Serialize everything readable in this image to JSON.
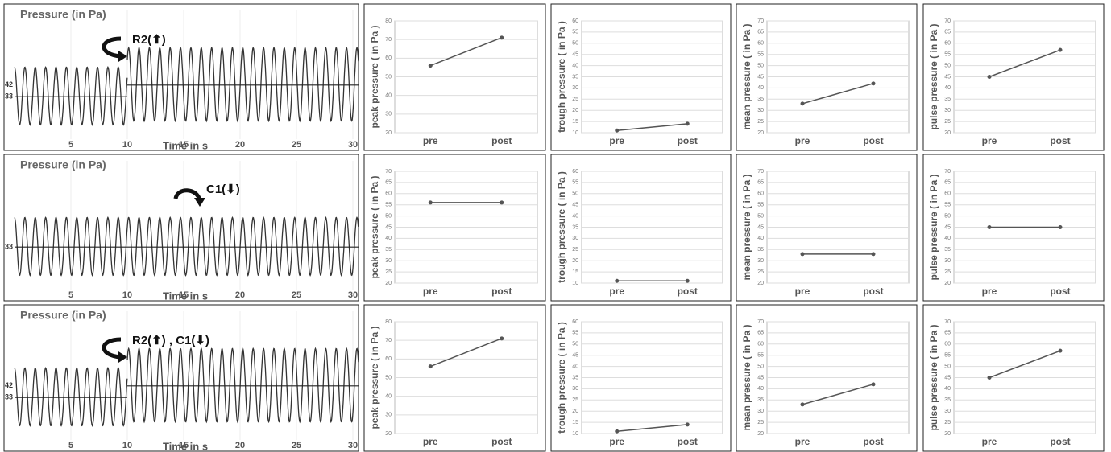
{
  "chart_data": [
    {
      "type": "waveform",
      "title": "Pressure (in Pa)",
      "annotation": "R2(⬆)",
      "xlabel": "Time in s",
      "xlim": [
        0,
        30.5
      ],
      "xticks": [
        5,
        10,
        15,
        20,
        25,
        30
      ],
      "ylim": [
        0,
        100
      ],
      "yticks": [
        42,
        33
      ],
      "period": 0.92,
      "segments": [
        {
          "start": 0,
          "end": 10,
          "peak": 56,
          "trough": 11,
          "mean": 33
        },
        {
          "start": 10,
          "end": 30.5,
          "peak": 71,
          "trough": 14,
          "mean": 42
        }
      ]
    },
    {
      "type": "line",
      "ylabel": "peak pressure ( in Pa )",
      "categories": [
        "pre",
        "post"
      ],
      "values": [
        56,
        71
      ],
      "ylim": [
        20,
        80
      ],
      "yticks": [
        20,
        30,
        40,
        50,
        60,
        70,
        80
      ],
      "color": "#555",
      "grid": true
    },
    {
      "type": "line",
      "ylabel": "trough pressure ( in Pa )",
      "categories": [
        "pre",
        "post"
      ],
      "values": [
        11,
        14
      ],
      "ylim": [
        10,
        60
      ],
      "yticks": [
        10,
        15,
        20,
        25,
        30,
        35,
        40,
        45,
        50,
        55,
        60
      ],
      "color": "#555",
      "grid": true
    },
    {
      "type": "line",
      "ylabel": "mean pressure ( in Pa )",
      "categories": [
        "pre",
        "post"
      ],
      "values": [
        33,
        42
      ],
      "ylim": [
        20,
        70
      ],
      "yticks": [
        20,
        25,
        30,
        35,
        40,
        45,
        50,
        55,
        60,
        65,
        70
      ],
      "color": "#555",
      "grid": true
    },
    {
      "type": "line",
      "ylabel": "pulse pressure ( in Pa )",
      "categories": [
        "pre",
        "post"
      ],
      "values": [
        45,
        57
      ],
      "ylim": [
        20,
        70
      ],
      "yticks": [
        20,
        25,
        30,
        35,
        40,
        45,
        50,
        55,
        60,
        65,
        70
      ],
      "color": "#555",
      "grid": true
    },
    {
      "type": "waveform",
      "title": "Pressure (in Pa)",
      "annotation": "C1(⬇)",
      "xlabel": "Time in s",
      "xlim": [
        0,
        30.5
      ],
      "xticks": [
        5,
        10,
        15,
        20,
        25,
        30
      ],
      "ylim": [
        0,
        100
      ],
      "yticks": [
        33
      ],
      "period": 0.92,
      "segments": [
        {
          "start": 0,
          "end": 30.5,
          "peak": 56,
          "trough": 11,
          "mean": 33
        }
      ]
    },
    {
      "type": "line",
      "ylabel": "peak pressure ( in Pa )",
      "categories": [
        "pre",
        "post"
      ],
      "values": [
        56,
        56
      ],
      "ylim": [
        20,
        70
      ],
      "yticks": [
        20,
        25,
        30,
        35,
        40,
        45,
        50,
        55,
        60,
        65,
        70
      ],
      "color": "#555",
      "grid": true
    },
    {
      "type": "line",
      "ylabel": "trough pressure ( in Pa )",
      "categories": [
        "pre",
        "post"
      ],
      "values": [
        11,
        11
      ],
      "ylim": [
        10,
        60
      ],
      "yticks": [
        10,
        15,
        20,
        25,
        30,
        35,
        40,
        45,
        50,
        55,
        60
      ],
      "color": "#555",
      "grid": true
    },
    {
      "type": "line",
      "ylabel": "mean pressure ( in Pa )",
      "categories": [
        "pre",
        "post"
      ],
      "values": [
        33,
        33
      ],
      "ylim": [
        20,
        70
      ],
      "yticks": [
        20,
        25,
        30,
        35,
        40,
        45,
        50,
        55,
        60,
        65,
        70
      ],
      "color": "#555",
      "grid": true
    },
    {
      "type": "line",
      "ylabel": "pulse pressure ( in Pa )",
      "categories": [
        "pre",
        "post"
      ],
      "values": [
        45,
        45
      ],
      "ylim": [
        20,
        70
      ],
      "yticks": [
        20,
        25,
        30,
        35,
        40,
        45,
        50,
        55,
        60,
        65,
        70
      ],
      "color": "#555",
      "grid": true
    },
    {
      "type": "waveform",
      "title": "Pressure (in Pa)",
      "annotation": "R2(⬆) , C1(⬇)",
      "xlabel": "Time in s",
      "xlim": [
        0,
        30.5
      ],
      "xticks": [
        5,
        10,
        15,
        20,
        25,
        30
      ],
      "ylim": [
        0,
        100
      ],
      "yticks": [
        42,
        33
      ],
      "period": 0.92,
      "segments": [
        {
          "start": 0,
          "end": 10,
          "peak": 56,
          "trough": 11,
          "mean": 33
        },
        {
          "start": 10,
          "end": 30.5,
          "peak": 71,
          "trough": 14,
          "mean": 42
        }
      ]
    },
    {
      "type": "line",
      "ylabel": "peak pressure ( in Pa )",
      "categories": [
        "pre",
        "post"
      ],
      "values": [
        56,
        71
      ],
      "ylim": [
        20,
        80
      ],
      "yticks": [
        20,
        30,
        40,
        50,
        60,
        70,
        80
      ],
      "color": "#555",
      "grid": true
    },
    {
      "type": "line",
      "ylabel": "trough pressure ( in Pa )",
      "categories": [
        "pre",
        "post"
      ],
      "values": [
        11,
        14
      ],
      "ylim": [
        10,
        60
      ],
      "yticks": [
        10,
        15,
        20,
        25,
        30,
        35,
        40,
        45,
        50,
        55,
        60
      ],
      "color": "#555",
      "grid": true
    },
    {
      "type": "line",
      "ylabel": "mean pressure ( in Pa )",
      "categories": [
        "pre",
        "post"
      ],
      "values": [
        33,
        42
      ],
      "ylim": [
        20,
        70
      ],
      "yticks": [
        20,
        25,
        30,
        35,
        40,
        45,
        50,
        55,
        60,
        65,
        70
      ],
      "color": "#555",
      "grid": true
    },
    {
      "type": "line",
      "ylabel": "pulse pressure ( in Pa )",
      "categories": [
        "pre",
        "post"
      ],
      "values": [
        45,
        57
      ],
      "ylim": [
        20,
        70
      ],
      "yticks": [
        20,
        25,
        30,
        35,
        40,
        45,
        50,
        55,
        60,
        65,
        70
      ],
      "color": "#555",
      "grid": true
    }
  ]
}
